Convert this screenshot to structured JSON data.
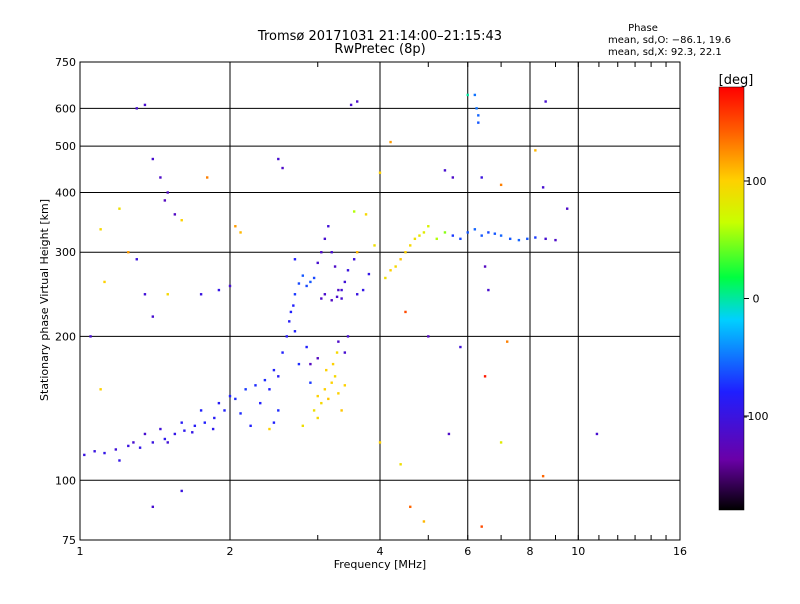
{
  "chart_data": {
    "type": "scatter",
    "title": "Tromsø 20171031 21:14:00–21:15:43",
    "subtitle": "RwPretec (8p)",
    "xlabel": "Frequency [MHz]",
    "ylabel": "Stationary phase Virtual Height [km]",
    "xscale": "log",
    "yscale": "log",
    "xlim": [
      1,
      16
    ],
    "ylim": [
      75,
      750
    ],
    "xticks": [
      1,
      2,
      4,
      6,
      8,
      10,
      16
    ],
    "yticks": [
      75,
      100,
      200,
      300,
      400,
      500,
      600,
      750
    ],
    "grid": true,
    "stats": {
      "heading": "Phase",
      "line1": "mean, sd,O: −86.1, 19.6",
      "line2": "mean, sd,X:  92.3, 22.1"
    },
    "colorbar": {
      "label": "[deg]",
      "min": -180,
      "max": 180,
      "ticks": [
        100,
        0,
        -100
      ],
      "colormap": "rainbow"
    },
    "series": [
      {
        "points": [
          [
            1.02,
            113,
            -100
          ],
          [
            1.07,
            115,
            -100
          ],
          [
            1.12,
            114,
            -95
          ],
          [
            1.18,
            116,
            -105
          ],
          [
            1.25,
            118,
            -100
          ],
          [
            1.32,
            117,
            -95
          ],
          [
            1.4,
            120,
            -100
          ],
          [
            1.48,
            122,
            -90
          ],
          [
            1.55,
            125,
            -95
          ],
          [
            1.62,
            127,
            -90
          ],
          [
            1.7,
            130,
            -85
          ],
          [
            1.78,
            132,
            -80
          ],
          [
            1.86,
            135,
            -85
          ],
          [
            1.95,
            140,
            -80
          ],
          [
            2.05,
            148,
            -75
          ],
          [
            2.15,
            155,
            -70
          ],
          [
            2.25,
            158,
            -75
          ],
          [
            2.35,
            162,
            -75
          ],
          [
            2.45,
            170,
            -80
          ],
          [
            2.55,
            185,
            -80
          ],
          [
            2.6,
            200,
            -85
          ],
          [
            2.63,
            215,
            -85
          ],
          [
            2.65,
            225,
            -80
          ],
          [
            2.68,
            232,
            -80
          ],
          [
            1.35,
            125,
            -110
          ],
          [
            1.5,
            120,
            -105
          ],
          [
            1.6,
            132,
            -85
          ],
          [
            1.75,
            140,
            -80
          ],
          [
            1.9,
            145,
            -85
          ],
          [
            2.0,
            150,
            -80
          ],
          [
            2.1,
            138,
            -75
          ],
          [
            2.3,
            145,
            -80
          ],
          [
            2.4,
            155,
            -80
          ],
          [
            2.5,
            165,
            -85
          ],
          [
            2.2,
            130,
            -80
          ],
          [
            1.85,
            128,
            -90
          ],
          [
            1.68,
            126,
            -95
          ],
          [
            1.45,
            128,
            -105
          ],
          [
            1.28,
            120,
            -110
          ],
          [
            2.7,
            245,
            -70
          ],
          [
            2.75,
            258,
            -65
          ],
          [
            2.8,
            268,
            -60
          ],
          [
            2.85,
            255,
            -65
          ],
          [
            2.9,
            260,
            -60
          ],
          [
            2.95,
            265,
            -65
          ],
          [
            3.0,
            285,
            -110
          ],
          [
            3.05,
            300,
            -115
          ],
          [
            3.1,
            320,
            -110
          ],
          [
            3.15,
            340,
            -105
          ],
          [
            3.2,
            300,
            -110
          ],
          [
            3.25,
            280,
            -115
          ],
          [
            3.3,
            250,
            -115
          ],
          [
            3.35,
            240,
            -110
          ],
          [
            3.4,
            260,
            -105
          ],
          [
            3.45,
            275,
            -100
          ],
          [
            3.55,
            290,
            -105
          ],
          [
            3.6,
            245,
            -100
          ],
          [
            3.7,
            250,
            -95
          ],
          [
            3.8,
            270,
            -95
          ],
          [
            3.05,
            240,
            -115
          ],
          [
            3.1,
            245,
            -112
          ],
          [
            3.2,
            238,
            -118
          ],
          [
            3.28,
            242,
            -112
          ],
          [
            3.35,
            250,
            -108
          ],
          [
            3.0,
            150,
            100
          ],
          [
            3.05,
            145,
            95
          ],
          [
            3.1,
            155,
            100
          ],
          [
            3.15,
            148,
            105
          ],
          [
            3.2,
            160,
            100
          ],
          [
            3.25,
            165,
            95
          ],
          [
            3.3,
            152,
            100
          ],
          [
            3.35,
            140,
            105
          ],
          [
            3.4,
            158,
            100
          ],
          [
            3.0,
            135,
            95
          ],
          [
            2.95,
            140,
            90
          ],
          [
            3.12,
            170,
            100
          ],
          [
            3.22,
            175,
            100
          ],
          [
            3.28,
            185,
            95
          ],
          [
            2.8,
            130,
            90
          ],
          [
            3.4,
            185,
            -110
          ],
          [
            3.45,
            200,
            -110
          ],
          [
            3.3,
            195,
            -115
          ],
          [
            3.0,
            180,
            -120
          ],
          [
            2.9,
            175,
            -120
          ],
          [
            4.1,
            265,
            90
          ],
          [
            4.2,
            275,
            100
          ],
          [
            4.3,
            280,
            95
          ],
          [
            4.4,
            290,
            105
          ],
          [
            4.5,
            300,
            100
          ],
          [
            4.6,
            310,
            95
          ],
          [
            4.7,
            320,
            90
          ],
          [
            4.8,
            325,
            85
          ],
          [
            4.9,
            330,
            80
          ],
          [
            5.0,
            340,
            75
          ],
          [
            5.2,
            320,
            60
          ],
          [
            5.4,
            330,
            50
          ],
          [
            5.6,
            325,
            -70
          ],
          [
            5.8,
            320,
            -65
          ],
          [
            6.0,
            330,
            -60
          ],
          [
            6.2,
            335,
            -55
          ],
          [
            6.4,
            325,
            -60
          ],
          [
            6.6,
            330,
            -65
          ],
          [
            6.8,
            328,
            -60
          ],
          [
            7.0,
            325,
            -55
          ],
          [
            7.3,
            320,
            -60
          ],
          [
            7.6,
            318,
            -55
          ],
          [
            7.9,
            320,
            -60
          ],
          [
            8.2,
            322,
            -70
          ],
          [
            8.6,
            320,
            -110
          ],
          [
            9.0,
            318,
            -115
          ],
          [
            6.2,
            640,
            -50
          ],
          [
            6.25,
            600,
            -50
          ],
          [
            6.3,
            580,
            -55
          ],
          [
            6.3,
            560,
            -60
          ],
          [
            1.3,
            600,
            -110
          ],
          [
            1.35,
            610,
            -112
          ],
          [
            1.4,
            470,
            -110
          ],
          [
            1.45,
            430,
            -115
          ],
          [
            1.5,
            400,
            -118
          ],
          [
            1.48,
            385,
            -120
          ],
          [
            1.55,
            360,
            -118
          ],
          [
            1.6,
            350,
            100
          ],
          [
            1.1,
            335,
            95
          ],
          [
            1.12,
            260,
            100
          ],
          [
            1.2,
            370,
            90
          ],
          [
            1.25,
            300,
            120
          ],
          [
            1.3,
            290,
            -100
          ],
          [
            1.35,
            245,
            -105
          ],
          [
            1.4,
            220,
            -110
          ],
          [
            1.5,
            245,
            95
          ],
          [
            1.75,
            245,
            -100
          ],
          [
            1.8,
            430,
            130
          ],
          [
            1.9,
            250,
            -95
          ],
          [
            2.0,
            255,
            -110
          ],
          [
            2.05,
            340,
            120
          ],
          [
            2.1,
            330,
            110
          ],
          [
            2.5,
            470,
            -110
          ],
          [
            2.55,
            450,
            -115
          ],
          [
            2.7,
            290,
            -80
          ],
          [
            3.55,
            365,
            60
          ],
          [
            3.6,
            300,
            110
          ],
          [
            3.75,
            360,
            95
          ],
          [
            3.9,
            310,
            90
          ],
          [
            4.0,
            440,
            100
          ],
          [
            4.2,
            510,
            120
          ],
          [
            3.5,
            610,
            -112
          ],
          [
            3.6,
            620,
            -115
          ],
          [
            5.4,
            445,
            -110
          ],
          [
            5.6,
            430,
            -115
          ],
          [
            6.0,
            640,
            0
          ],
          [
            6.4,
            430,
            -100
          ],
          [
            6.5,
            280,
            -120
          ],
          [
            6.6,
            250,
            -110
          ],
          [
            7.0,
            415,
            130
          ],
          [
            8.2,
            490,
            110
          ],
          [
            8.5,
            410,
            -110
          ],
          [
            8.6,
            620,
            -110
          ],
          [
            9.5,
            370,
            -115
          ],
          [
            10.9,
            125,
            -110
          ],
          [
            1.05,
            200,
            -110
          ],
          [
            1.1,
            155,
            100
          ],
          [
            1.6,
            95,
            -100
          ],
          [
            1.4,
            88,
            -110
          ],
          [
            1.2,
            110,
            -95
          ],
          [
            4.0,
            120,
            100
          ],
          [
            4.4,
            108,
            90
          ],
          [
            4.6,
            88,
            140
          ],
          [
            4.9,
            82,
            110
          ],
          [
            4.5,
            225,
            150
          ],
          [
            5.0,
            200,
            -120
          ],
          [
            5.5,
            125,
            -115
          ],
          [
            5.8,
            190,
            -105
          ],
          [
            6.5,
            165,
            170
          ],
          [
            6.4,
            80,
            150
          ],
          [
            7.0,
            120,
            80
          ],
          [
            7.2,
            195,
            130
          ],
          [
            8.5,
            102,
            140
          ],
          [
            2.9,
            160,
            -70
          ],
          [
            2.75,
            175,
            -75
          ],
          [
            2.85,
            190,
            -80
          ],
          [
            2.7,
            205,
            -80
          ],
          [
            2.5,
            140,
            -75
          ],
          [
            2.45,
            132,
            -80
          ],
          [
            2.4,
            128,
            100
          ]
        ]
      }
    ]
  }
}
